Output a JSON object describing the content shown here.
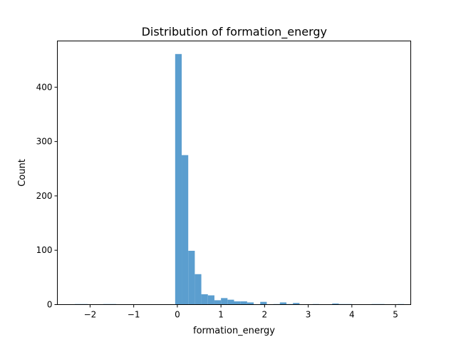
{
  "chart_data": {
    "type": "bar",
    "title": "Distribution of formation_energy",
    "xlabel": "formation_energy",
    "ylabel": "Count",
    "xlim": [
      -2.75,
      5.35
    ],
    "ylim": [
      0,
      485
    ],
    "x_ticks": [
      -2,
      -1,
      0,
      1,
      2,
      3,
      4,
      5
    ],
    "x_tick_labels": [
      "−2",
      "−1",
      "0",
      "1",
      "2",
      "3",
      "4",
      "5"
    ],
    "y_ticks": [
      0,
      100,
      200,
      300,
      400
    ],
    "y_tick_labels": [
      "0",
      "100",
      "200",
      "300",
      "400"
    ],
    "grid": false,
    "bar_color": "#5b9ecf",
    "bin_width": 0.15,
    "bins": [
      {
        "x0": -2.35,
        "count": 1
      },
      {
        "x0": -2.2,
        "count": 1
      },
      {
        "x0": -1.7,
        "count": 1
      },
      {
        "x0": -1.55,
        "count": 1
      },
      {
        "x0": -0.05,
        "count": 461
      },
      {
        "x0": 0.1,
        "count": 275
      },
      {
        "x0": 0.25,
        "count": 99
      },
      {
        "x0": 0.4,
        "count": 56
      },
      {
        "x0": 0.55,
        "count": 19
      },
      {
        "x0": 0.7,
        "count": 17
      },
      {
        "x0": 0.85,
        "count": 8
      },
      {
        "x0": 1.0,
        "count": 12
      },
      {
        "x0": 1.15,
        "count": 9
      },
      {
        "x0": 1.3,
        "count": 6
      },
      {
        "x0": 1.45,
        "count": 6
      },
      {
        "x0": 1.6,
        "count": 4
      },
      {
        "x0": 1.9,
        "count": 5
      },
      {
        "x0": 2.2,
        "count": 1
      },
      {
        "x0": 2.35,
        "count": 4
      },
      {
        "x0": 2.5,
        "count": 1
      },
      {
        "x0": 2.65,
        "count": 3
      },
      {
        "x0": 3.1,
        "count": 1
      },
      {
        "x0": 3.55,
        "count": 2
      },
      {
        "x0": 3.7,
        "count": 1
      },
      {
        "x0": 3.85,
        "count": 1
      },
      {
        "x0": 4.45,
        "count": 1
      },
      {
        "x0": 4.6,
        "count": 1
      },
      {
        "x0": 5.05,
        "count": 1
      }
    ]
  }
}
